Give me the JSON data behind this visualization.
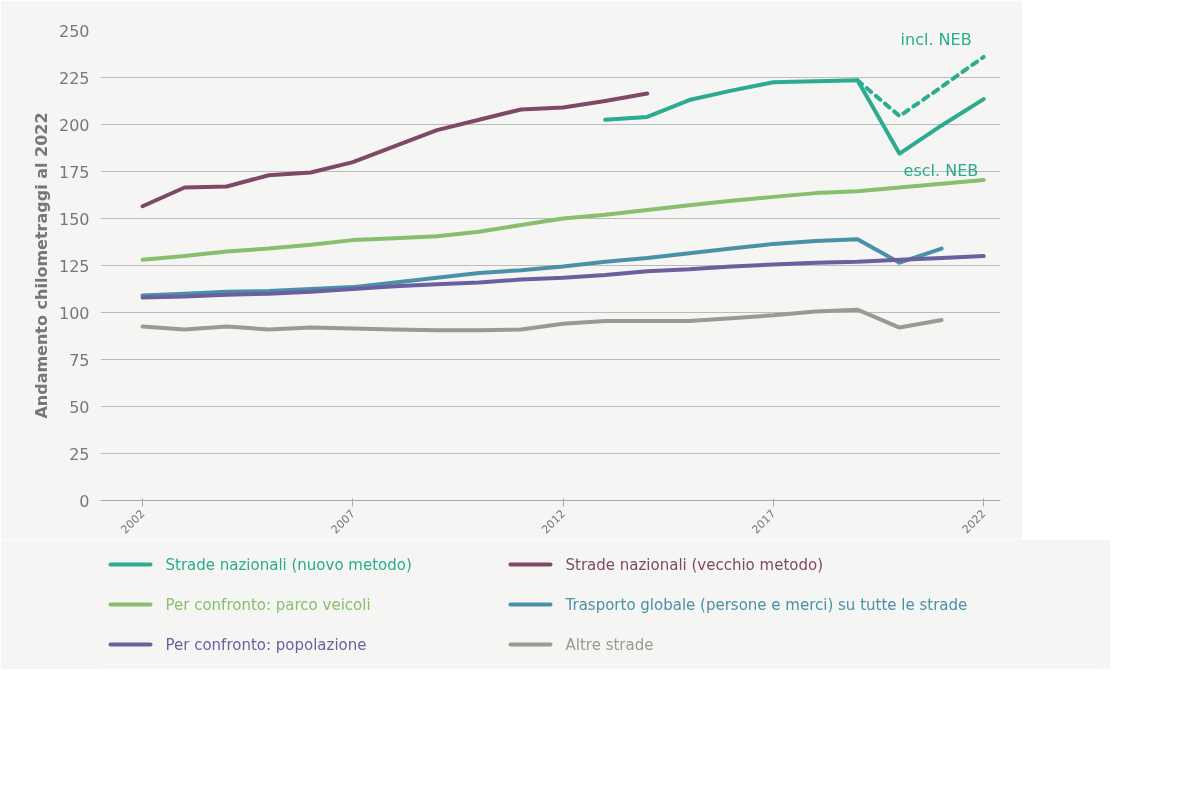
{
  "chart_data": {
    "type": "line",
    "ylabel": "Andamento chilometraggi al 2022",
    "xlim": [
      2001,
      2022.4
    ],
    "xticks": [
      2002,
      2007,
      2012,
      2017,
      2022
    ],
    "ylim": [
      0,
      250
    ],
    "yticks": [
      0,
      25,
      50,
      75,
      100,
      125,
      150,
      175,
      200,
      225,
      250
    ],
    "grid": "y",
    "legend": "bottom",
    "line_style": "solid",
    "marker": "none",
    "series": [
      {
        "name": "Strade nazionali (nuovo metodo)",
        "color": "#2bab8f",
        "x": [
          2013,
          2014,
          2015,
          2016,
          2017,
          2018,
          2019,
          2020,
          2021,
          2022
        ],
        "values": [
          202.5,
          204,
          213,
          218,
          222.5,
          223,
          223.5,
          184.5,
          199.5,
          213.5
        ]
      },
      {
        "name": "Strade nazionali (vecchio metodo)",
        "color": "#7f4867",
        "x": [
          2002,
          2003,
          2004,
          2005,
          2006,
          2007,
          2008,
          2009,
          2010,
          2011,
          2012,
          2013,
          2014
        ],
        "values": [
          156.5,
          166.5,
          167,
          173,
          174.5,
          180,
          188.5,
          197,
          202.5,
          208,
          209,
          212.5,
          216.5
        ]
      },
      {
        "name": "Per confronto: parco veicoli",
        "color": "#86bf6e",
        "x": [
          2002,
          2003,
          2004,
          2005,
          2006,
          2007,
          2008,
          2009,
          2010,
          2011,
          2012,
          2013,
          2014,
          2015,
          2016,
          2017,
          2018,
          2019,
          2020,
          2021,
          2022
        ],
        "values": [
          128,
          130,
          132.5,
          134,
          136,
          138.5,
          139.5,
          140.5,
          143,
          146.5,
          150,
          152,
          154.5,
          157,
          159.5,
          161.5,
          163.5,
          164.5,
          166.5,
          168.5,
          170.5
        ]
      },
      {
        "name": "Trasporto globale (persone e merci) su tutte le strade",
        "color": "#4a90a8",
        "x": [
          2002,
          2003,
          2004,
          2005,
          2006,
          2007,
          2008,
          2009,
          2010,
          2011,
          2012,
          2013,
          2014,
          2015,
          2016,
          2017,
          2018,
          2019,
          2020,
          2021
        ],
        "values": [
          109,
          110,
          111,
          111.5,
          112.5,
          113.5,
          116,
          118.5,
          121,
          122.5,
          124.5,
          127,
          129,
          131.5,
          134,
          136.5,
          138,
          139,
          126.5,
          134
        ]
      },
      {
        "name": "Per confronto: popolazione",
        "color": "#6b5f9e",
        "x": [
          2002,
          2003,
          2004,
          2005,
          2006,
          2007,
          2008,
          2009,
          2010,
          2011,
          2012,
          2013,
          2014,
          2015,
          2016,
          2017,
          2018,
          2019,
          2020,
          2021,
          2022
        ],
        "values": [
          108,
          108.5,
          109.5,
          110,
          111,
          112.5,
          114,
          115,
          116,
          117.5,
          118.5,
          120,
          122,
          123,
          124.5,
          125.5,
          126.5,
          127,
          128,
          129,
          130
        ]
      },
      {
        "name": "Altre strade",
        "color": "#9a9a92",
        "x": [
          2002,
          2003,
          2004,
          2005,
          2006,
          2007,
          2008,
          2009,
          2010,
          2011,
          2012,
          2013,
          2014,
          2015,
          2016,
          2017,
          2018,
          2019,
          2020,
          2021
        ],
        "values": [
          92.5,
          91,
          92.5,
          91,
          92,
          91.5,
          91,
          90.5,
          90.5,
          91,
          94,
          95.5,
          95.5,
          95.5,
          97,
          98.5,
          100.5,
          101.5,
          92,
          96
        ]
      },
      {
        "color": "#2bab8f",
        "line_style": "dashed",
        "x": [
          2019,
          2020,
          2021,
          2022
        ],
        "values": [
          223.5,
          204.5,
          220,
          236
        ]
      }
    ],
    "annotations": [
      "incl. NEB",
      "escl. NEB"
    ]
  }
}
